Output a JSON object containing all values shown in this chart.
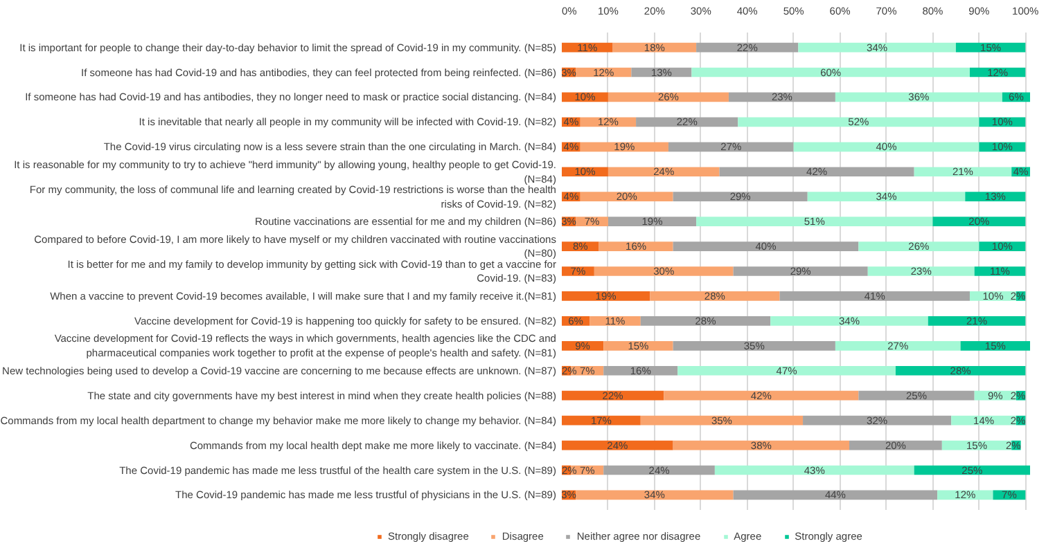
{
  "chart_data": {
    "type": "bar",
    "orientation": "horizontal",
    "stacked": true,
    "grid": "x",
    "legend": "bottom",
    "categories": [
      "It is important for people to change their day-to-day behavior to limit the spread of Covid-19 in my community. (N=85)",
      "If someone has had Covid-19 and has antibodies, they can feel protected from being reinfected. (N=86)",
      "If someone has had Covid-19 and has antibodies, they no longer need to mask or practice social distancing. (N=84)",
      "It is inevitable that nearly all people in my community will be infected with Covid-19. (N=82)",
      "The Covid-19 virus circulating now is a less severe strain than the one circulating in March. (N=84)",
      "It is reasonable for my community to try to achieve \"herd immunity\" by allowing young, healthy people to get Covid-19. (N=84)",
      "For my community, the loss of communal life and learning created by Covid-19 restrictions is worse than the health risks of Covid-19. (N=82)",
      "Routine vaccinations are essential for me and my children (N=86)",
      "Compared to before Covid-19, I am more likely to have myself or my children vaccinated with routine vaccinations (N=80)",
      "It is better for me and my family to develop immunity by getting sick with Covid-19 than to get a vaccine for Covid-19. (N=83)",
      "When a vaccine to prevent Covid-19 becomes available, I will make sure that I and my family receive it.(N=81)",
      "Vaccine development for Covid-19 is happening too quickly for safety to be ensured. (N=82)",
      "Vaccine development for Covid-19 reflects the ways in which governments, health agencies like the CDC and pharmaceutical companies work together to profit at the expense of people's health and safety. (N=81)",
      "New technologies being used to develop a Covid-19 vaccine are concerning to me because effects are unknown. (N=87)",
      "The state and city governments have my best interest in mind when they create health policies (N=88)",
      "Commands from my local health department to change my behavior make me more likely to change my behavior. (N=84)",
      "Commands from my local health dept make me more likely to vaccinate. (N=84)",
      "The Covid-19 pandemic has made me less trustful of the health care system in the U.S. (N=89)",
      "The Covid-19 pandemic has made me less trustful of physicians in the U.S. (N=89)"
    ],
    "xlim": [
      0,
      101
    ],
    "xticks": [
      {
        "value": 0,
        "label": "0%"
      },
      {
        "value": 10,
        "label": "10%"
      },
      {
        "value": 20,
        "label": "20%"
      },
      {
        "value": 30,
        "label": "30%"
      },
      {
        "value": 40,
        "label": "40%"
      },
      {
        "value": 50,
        "label": "50%"
      },
      {
        "value": 60,
        "label": "60%"
      },
      {
        "value": 70,
        "label": "70%"
      },
      {
        "value": 80,
        "label": "80%"
      },
      {
        "value": 90,
        "label": "90%"
      },
      {
        "value": 100,
        "label": "100%"
      }
    ],
    "series": [
      {
        "name": "Strongly disagree",
        "color": "#f26b1d",
        "values": [
          11,
          3,
          10,
          4,
          4,
          10,
          4,
          3,
          8,
          7,
          19,
          6,
          9,
          2,
          22,
          17,
          24,
          2,
          3
        ],
        "value_labels": [
          "11%",
          "3%",
          "10%",
          "4%",
          "4%",
          "10%",
          "4%",
          "3%",
          "8%",
          "7%",
          "19%",
          "6%",
          "9%",
          "2%",
          "22%",
          "17%",
          "24%",
          "2%",
          "3%"
        ]
      },
      {
        "name": "Disagree",
        "color": "#f9a46e",
        "values": [
          18,
          12,
          26,
          12,
          19,
          24,
          20,
          7,
          16,
          30,
          28,
          11,
          15,
          7,
          42,
          35,
          38,
          7,
          34
        ],
        "value_labels": [
          "18%",
          "12%",
          "26%",
          "12%",
          "19%",
          "24%",
          "20%",
          "7%",
          "16%",
          "30%",
          "28%",
          "11%",
          "15%",
          "7%",
          "42%",
          "35%",
          "38%",
          "7%",
          "34%"
        ]
      },
      {
        "name": "Neither agree nor disagree",
        "color": "#a5a5a5",
        "values": [
          22,
          13,
          23,
          22,
          27,
          42,
          29,
          19,
          40,
          29,
          41,
          28,
          35,
          16,
          25,
          32,
          20,
          24,
          44
        ],
        "value_labels": [
          "22%",
          "13%",
          "23%",
          "22%",
          "27%",
          "42%",
          "29%",
          "19%",
          "40%",
          "29%",
          "41%",
          "28%",
          "35%",
          "16%",
          "25%",
          "32%",
          "20%",
          "24%",
          "44%"
        ]
      },
      {
        "name": "Agree",
        "color": "#a4f8d5",
        "values": [
          34,
          60,
          36,
          52,
          40,
          21,
          34,
          51,
          26,
          23,
          10,
          34,
          27,
          47,
          9,
          14,
          15,
          43,
          12
        ],
        "value_labels": [
          "34%",
          "60%",
          "36%",
          "52%",
          "40%",
          "21%",
          "34%",
          "51%",
          "26%",
          "23%",
          "10%",
          "34%",
          "27%",
          "47%",
          "9%",
          "14%",
          "15%",
          "43%",
          "12%"
        ]
      },
      {
        "name": "Strongly agree",
        "color": "#00c896",
        "values": [
          15,
          12,
          6,
          10,
          10,
          4,
          13,
          20,
          10,
          11,
          2,
          21,
          15,
          28,
          2,
          2,
          2,
          25,
          7
        ],
        "value_labels": [
          "15%",
          "12%",
          "6%",
          "10%",
          "10%",
          "4%",
          "13%",
          "20%",
          "10%",
          "11%",
          "2%",
          "21%",
          "15%",
          "28%",
          "2%",
          "2%",
          "2%",
          "25%",
          "7%"
        ]
      }
    ]
  }
}
